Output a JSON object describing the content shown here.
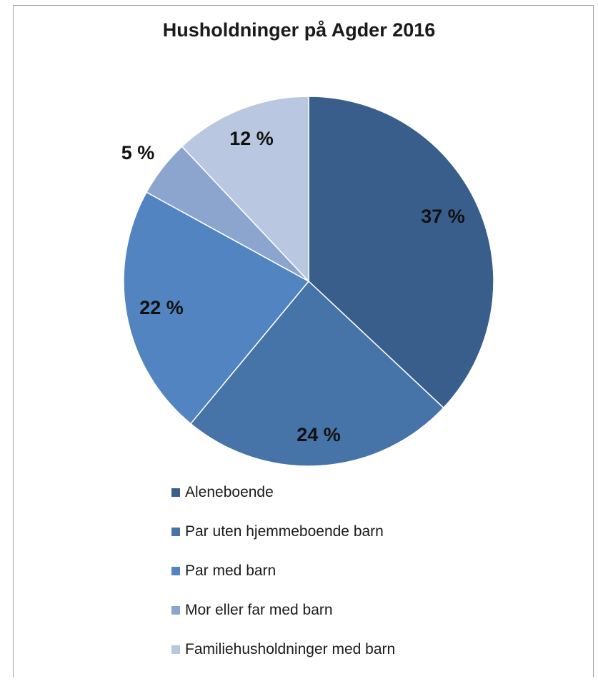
{
  "chart_data": {
    "type": "pie",
    "title": "Husholdninger på Agder 2016",
    "categories": [
      "Aleneboende",
      "Par uten hjemmeboende barn",
      "Par med barn",
      "Mor eller far med barn",
      "Familiehusholdninger med barn"
    ],
    "values": [
      37,
      24,
      22,
      5,
      12
    ],
    "data_labels": [
      "37 %",
      "24 %",
      "22 %",
      "5 %",
      "12 %"
    ],
    "colors": [
      "#3a5e8c",
      "#4673a8",
      "#5184c0",
      "#8ba5cf",
      "#bac7e0"
    ],
    "legend_position": "bottom",
    "start_angle": "12 o'clock, clockwise"
  }
}
